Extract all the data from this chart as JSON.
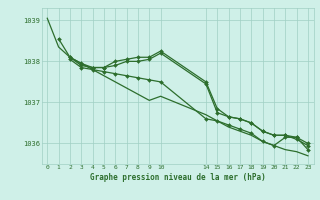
{
  "bg_color": "#cff0e8",
  "line_color": "#2d6e2d",
  "grid_color": "#a0cfc4",
  "xlabel": "Graphe pression niveau de la mer (hPa)",
  "tick_color": "#2d6e2d",
  "ylim": [
    1035.5,
    1039.3
  ],
  "yticks": [
    1036,
    1037,
    1038,
    1039
  ],
  "xtick_labels": [
    "0",
    "1",
    "2",
    "3",
    "4",
    "5",
    "6",
    "7",
    "8",
    "9",
    "10",
    "",
    "",
    "",
    "14",
    "15",
    "16",
    "17",
    "18",
    "19",
    "20",
    "21",
    "22",
    "23"
  ],
  "lines": [
    {
      "x": [
        0,
        1,
        2,
        3,
        4,
        5,
        6,
        7,
        8,
        9,
        10,
        14,
        15,
        16,
        17,
        18,
        19,
        20,
        21,
        22,
        23
      ],
      "y": [
        1039.05,
        1038.35,
        1038.1,
        1037.95,
        1037.8,
        1037.65,
        1037.5,
        1037.35,
        1037.2,
        1037.05,
        1037.15,
        1036.7,
        1036.55,
        1036.4,
        1036.3,
        1036.2,
        1036.05,
        1035.95,
        1035.85,
        1035.8,
        1035.7
      ],
      "marker": null,
      "lw": 0.9
    },
    {
      "x": [
        1,
        2,
        3,
        4,
        5,
        6,
        7,
        8,
        9,
        10,
        14,
        15,
        16,
        17,
        18,
        19,
        20,
        21,
        22,
        23
      ],
      "y": [
        1038.55,
        1038.1,
        1037.95,
        1037.85,
        1037.85,
        1038.0,
        1038.05,
        1038.1,
        1038.1,
        1038.25,
        1037.5,
        1036.85,
        1036.65,
        1036.6,
        1036.5,
        1036.3,
        1036.2,
        1036.2,
        1036.15,
        1036.0
      ],
      "marker": "D",
      "lw": 0.9
    },
    {
      "x": [
        2,
        3,
        4,
        5,
        6,
        7,
        8,
        9,
        10,
        14,
        15,
        16,
        17,
        18,
        19,
        20,
        21,
        22,
        23
      ],
      "y": [
        1038.1,
        1037.9,
        1037.85,
        1037.85,
        1037.9,
        1038.0,
        1038.0,
        1038.05,
        1038.2,
        1037.45,
        1036.75,
        1036.65,
        1036.6,
        1036.5,
        1036.3,
        1036.2,
        1036.2,
        1036.1,
        1035.95
      ],
      "marker": "D",
      "lw": 0.9
    },
    {
      "x": [
        2,
        3,
        4,
        5,
        6,
        7,
        8,
        9,
        10,
        14,
        15,
        16,
        17,
        18,
        19,
        20,
        21,
        22,
        23
      ],
      "y": [
        1038.05,
        1037.85,
        1037.8,
        1037.75,
        1037.7,
        1037.65,
        1037.6,
        1037.55,
        1037.5,
        1036.6,
        1036.55,
        1036.45,
        1036.35,
        1036.25,
        1036.05,
        1035.95,
        1036.15,
        1036.15,
        1035.85
      ],
      "marker": "D",
      "lw": 0.9
    }
  ]
}
